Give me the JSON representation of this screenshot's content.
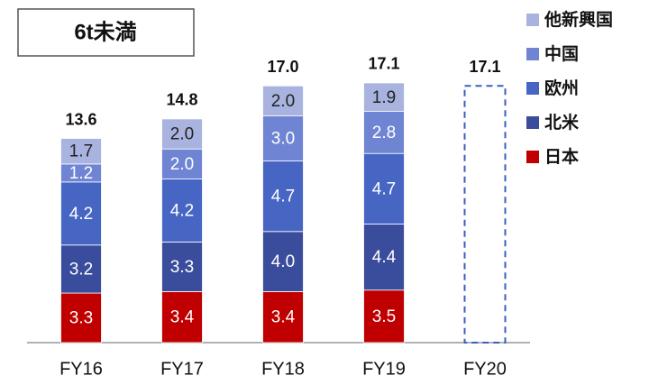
{
  "chart_data": {
    "type": "stacked_bar",
    "title": "6t未満",
    "categories": [
      "FY16",
      "FY17",
      "FY18",
      "FY19",
      "FY20"
    ],
    "series": [
      {
        "name": "日本",
        "color": "#c00000",
        "values": [
          3.3,
          3.4,
          3.4,
          3.5,
          null
        ],
        "value_labels": [
          "3.3",
          "3.4",
          "3.4",
          "3.5",
          null
        ]
      },
      {
        "name": "北米",
        "color": "#3a4c9c",
        "values": [
          3.2,
          3.3,
          4.0,
          4.4,
          null
        ],
        "value_labels": [
          "3.2",
          "3.3",
          "4.0",
          "4.4",
          null
        ]
      },
      {
        "name": "欧州",
        "color": "#4766c4",
        "values": [
          4.2,
          4.2,
          4.7,
          4.7,
          null
        ],
        "value_labels": [
          "4.2",
          "4.2",
          "4.7",
          "4.7",
          null
        ]
      },
      {
        "name": "中国",
        "color": "#6f85d4",
        "values": [
          1.2,
          2.0,
          3.0,
          2.8,
          null
        ],
        "value_labels": [
          "1.2",
          "2.0",
          "3.0",
          "2.8",
          null
        ]
      },
      {
        "name": "他新興国",
        "color": "#a9b3df",
        "values": [
          1.7,
          2.0,
          2.0,
          1.9,
          null
        ],
        "value_labels": [
          "1.7",
          "2.0",
          "2.0",
          "1.9",
          null
        ]
      }
    ],
    "totals": {
      "values": [
        13.6,
        14.8,
        17.0,
        17.1,
        17.1
      ],
      "value_labels": [
        "13.6",
        "14.8",
        "17.0",
        "17.1",
        "17.1"
      ]
    },
    "ylim": [
      0,
      22
    ]
  }
}
